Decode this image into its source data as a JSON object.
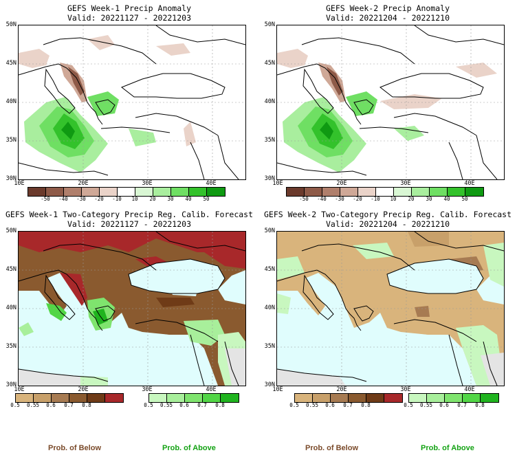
{
  "panels": {
    "p1": {
      "title": "GEFS Week-1 Precip Anomaly",
      "valid": "Valid: 20221127 - 20221203"
    },
    "p2": {
      "title": "GEFS Week-2 Precip Anomaly",
      "valid": "Valid: 20221204 - 20221210"
    },
    "p3": {
      "title": "GEFS Week-1 Two-Category Precip Reg. Calib. Forecast",
      "valid": "Valid: 20221127 - 20221203"
    },
    "p4": {
      "title": "GEFS Week-2 Two-Category Precip Reg. Calib. Forecast",
      "valid": "Valid: 20221204 - 20221210"
    }
  },
  "axes": {
    "lat_labels": [
      "50N",
      "45N",
      "40N",
      "35N",
      "30N"
    ],
    "lon_labels": [
      "10E",
      "20E",
      "30E",
      "40E"
    ]
  },
  "anomaly_colorbar": {
    "labels": [
      "-50",
      "-40",
      "-30",
      "-20",
      "-10",
      "10",
      "20",
      "30",
      "40",
      "50"
    ],
    "colors": [
      "#6b3a2c",
      "#8e5a48",
      "#b07f6c",
      "#cfa897",
      "#ead3c9",
      "#ffffff",
      "#d9f7d4",
      "#a9ee9e",
      "#6fdf63",
      "#33c22b",
      "#0f9a12"
    ]
  },
  "prob_colorbars": {
    "below_labels": [
      "0.5",
      "0.55",
      "0.6",
      "0.7",
      "0.8"
    ],
    "below_colors": [
      "#d9b47c",
      "#c8a06a",
      "#a77b52",
      "#8a5a2f",
      "#6f3b17",
      "#a8282a"
    ],
    "above_labels": [
      "0.5",
      "0.55",
      "0.6",
      "0.7",
      "0.8"
    ],
    "above_colors": [
      "#c8f7bf",
      "#a8ef9b",
      "#7fe46e",
      "#52d646",
      "#20b41f"
    ]
  },
  "legend": {
    "below": "Prob. of Below",
    "above": "Prob. of Above"
  },
  "colors": {
    "sea_fill": "#e0fdfd",
    "below_label": "#7a4a2a",
    "above_label": "#13a213",
    "gray_land": "#e4e4e4"
  }
}
